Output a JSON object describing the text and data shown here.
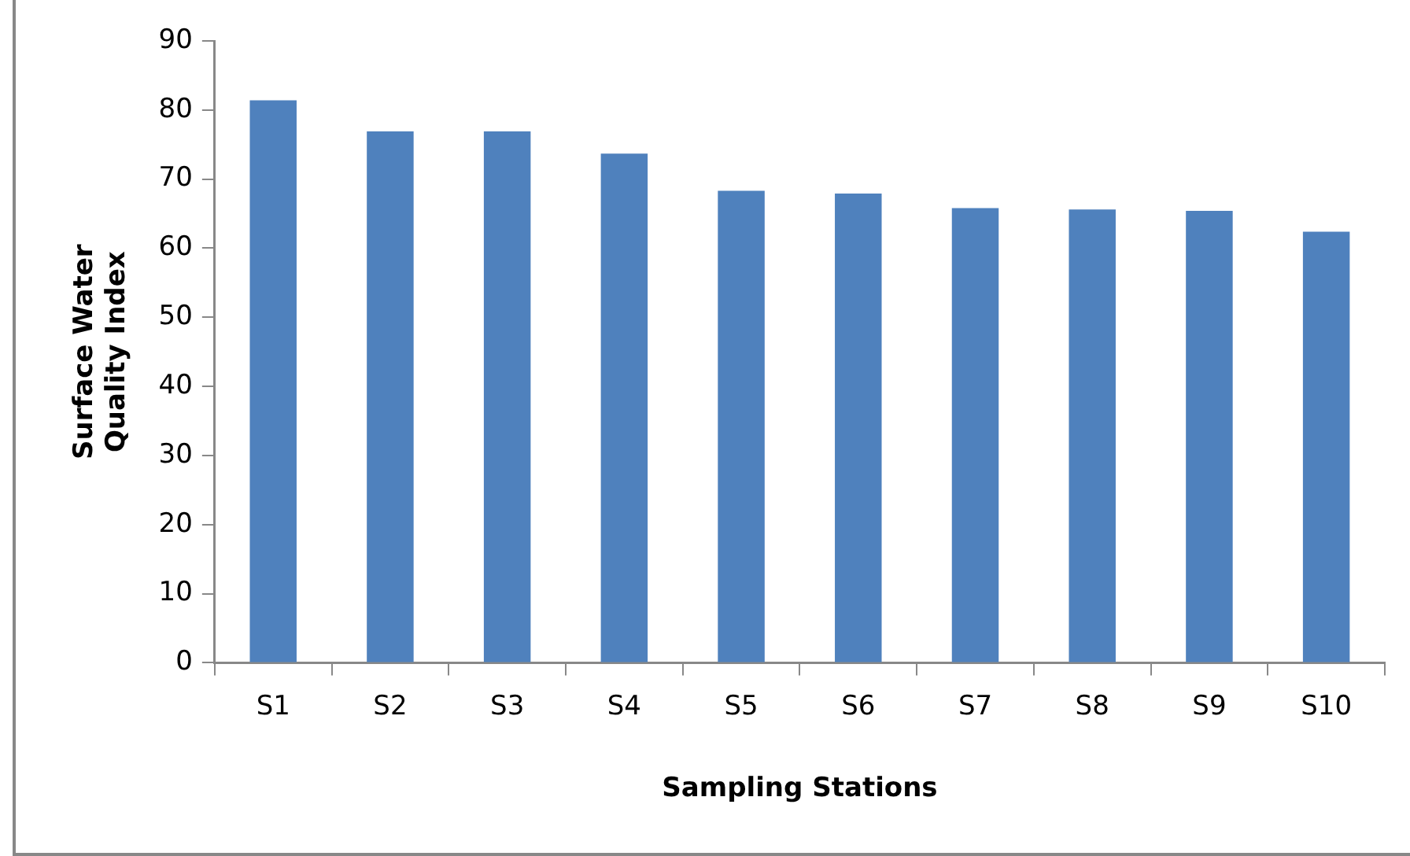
{
  "chart_data": {
    "type": "bar",
    "xlabel": "Sampling Stations",
    "ylabel": "Surface Water Quality Index",
    "categories": [
      "S1",
      "S2",
      "S3",
      "S4",
      "S5",
      "S6",
      "S7",
      "S8",
      "S9",
      "S10"
    ],
    "values": [
      81.4,
      76.9,
      76.9,
      73.7,
      68.3,
      67.9,
      65.8,
      65.6,
      65.4,
      62.4
    ],
    "color": "#4f81bd",
    "ylim": [
      0,
      90
    ],
    "yticks": [
      0,
      10,
      20,
      30,
      40,
      50,
      60,
      70,
      80,
      90
    ],
    "grid": false,
    "legend": false
  }
}
